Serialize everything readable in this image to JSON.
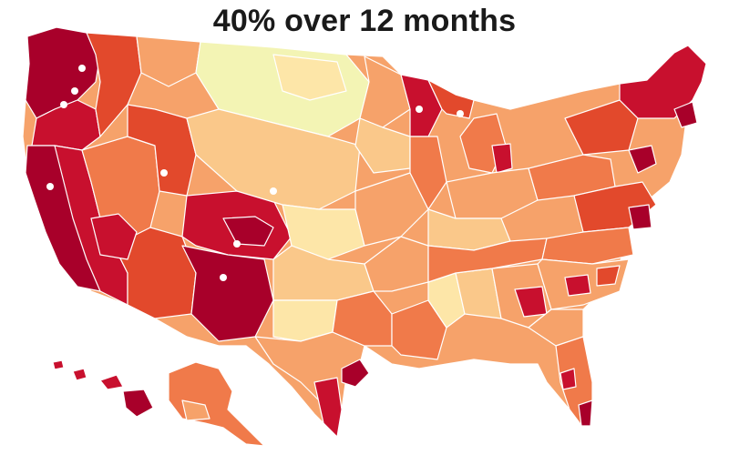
{
  "title": "40% over 12 months",
  "palette": {
    "darkest": "#a8002a",
    "dark": "#c8102e",
    "red_orange": "#e2492c",
    "orange": "#f07a4a",
    "light_orange": "#f6a26a",
    "peach": "#fac88a",
    "light_yellow": "#fde6a8",
    "pale_yellow": "#f3f4b4"
  }
}
